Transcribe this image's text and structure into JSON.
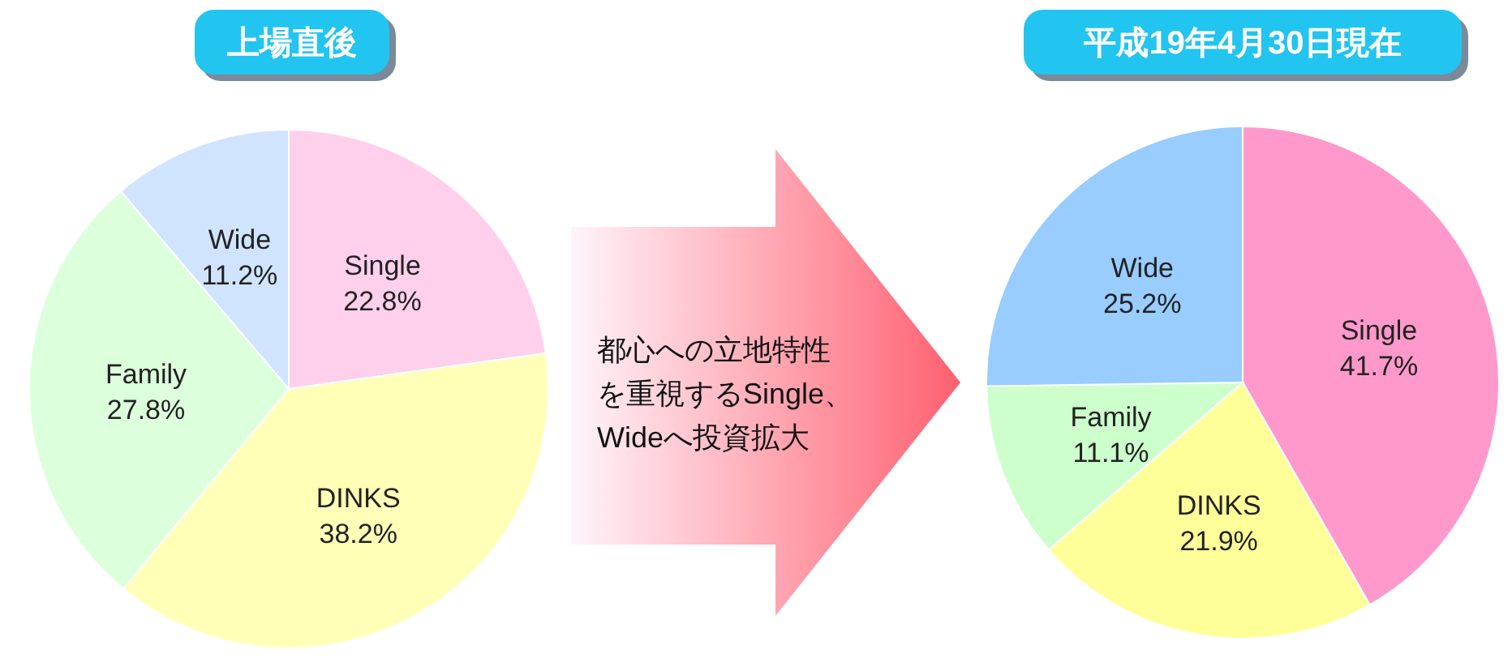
{
  "chart_data": [
    {
      "type": "pie",
      "title": "上場直後",
      "categories": [
        "Single",
        "DINKS",
        "Family",
        "Wide"
      ],
      "values": [
        22.8,
        38.2,
        27.8,
        11.2
      ],
      "value_labels": [
        "22.8%",
        "38.2%",
        "27.8%",
        "11.2%"
      ],
      "colors": [
        "#ffd0ec",
        "#ffffb8",
        "#dcffdc",
        "#d0e4ff"
      ]
    },
    {
      "type": "other",
      "annotations": [
        "都心への立地特性",
        "を重視するSingle、",
        "Wideへ投資拡大"
      ]
    },
    {
      "type": "pie",
      "title": "平成19年4月30日現在",
      "categories": [
        "Single",
        "DINKS",
        "Family",
        "Wide"
      ],
      "values": [
        41.7,
        21.9,
        11.1,
        25.2
      ],
      "value_labels": [
        "41.7%",
        "21.9%",
        "11.1%",
        "25.2%"
      ],
      "colors": [
        "#ff99cc",
        "#ffff99",
        "#ccffcc",
        "#99ccff"
      ]
    }
  ]
}
